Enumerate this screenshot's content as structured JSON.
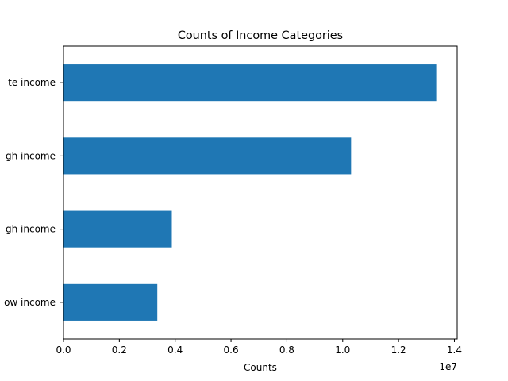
{
  "chart_data": {
    "type": "bar",
    "orientation": "horizontal",
    "title": "Counts of Income Categories",
    "xlabel": "Counts",
    "ylabel": "",
    "x_offset_text": "1e7",
    "x_scale_factor": 10000000,
    "xlim": [
      0,
      14100000
    ],
    "x_ticks": [
      0,
      2000000,
      4000000,
      6000000,
      8000000,
      10000000,
      12000000,
      14000000
    ],
    "x_tick_labels": [
      "0.0",
      "0.2",
      "0.4",
      "0.6",
      "0.8",
      "1.0",
      "1.2",
      "1.4"
    ],
    "categories": [
      "te income",
      "gh income",
      "gh income",
      "ow income"
    ],
    "values": [
      13350000,
      10300000,
      3880000,
      3360000
    ],
    "bar_color": "#1f77b4",
    "grid": false,
    "legend": "none"
  }
}
